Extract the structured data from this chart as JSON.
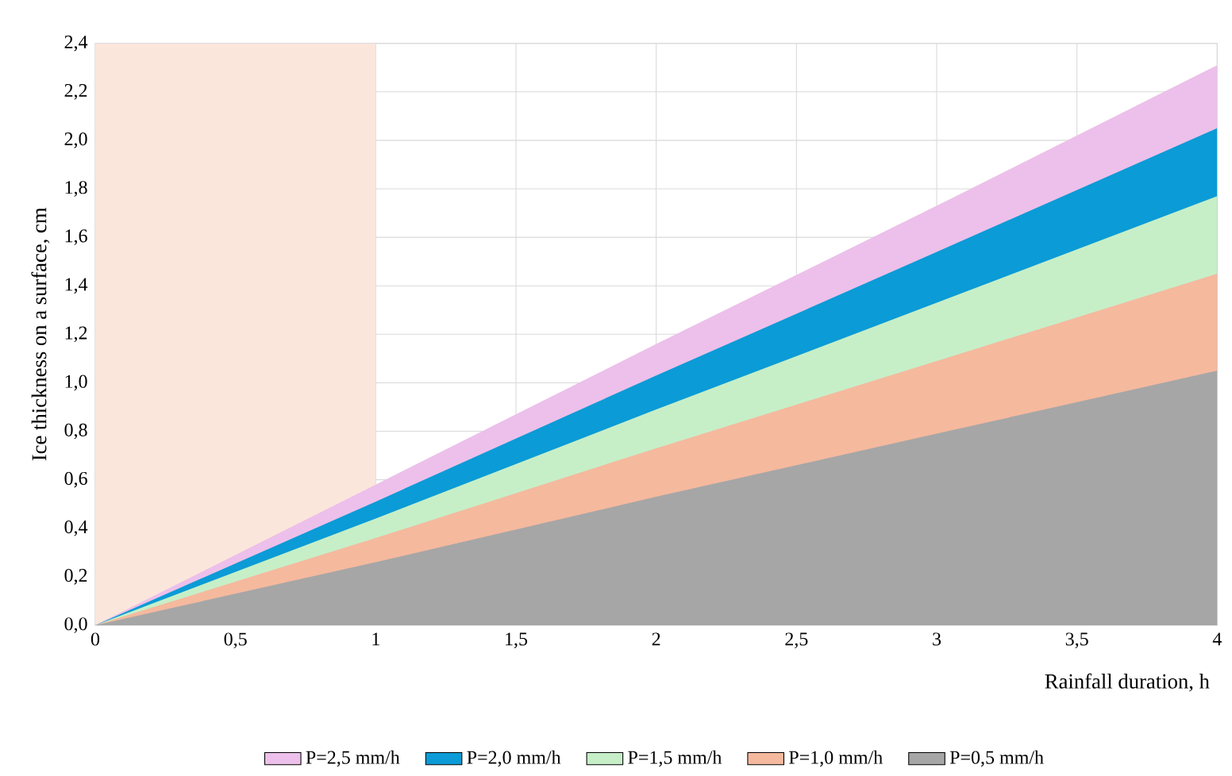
{
  "chart_data": {
    "type": "area",
    "xlabel": "Rainfall duration, h",
    "ylabel": "Ice thickness on a surface, cm",
    "x": [
      0,
      1,
      2,
      3,
      4
    ],
    "series": [
      {
        "name": "P=2,5 mm/h",
        "color": "#ecc0ea",
        "values": [
          0,
          0.58,
          1.16,
          1.73,
          2.31
        ]
      },
      {
        "name": "P=2,0 mm/h",
        "color": "#0b9bd6",
        "values": [
          0,
          0.51,
          1.03,
          1.54,
          2.05
        ]
      },
      {
        "name": "P=1,5 mm/h",
        "color": "#c6efc8",
        "values": [
          0,
          0.44,
          0.89,
          1.33,
          1.77
        ]
      },
      {
        "name": "P=1,0 mm/h",
        "color": "#f5b99e",
        "values": [
          0,
          0.36,
          0.73,
          1.09,
          1.45
        ]
      },
      {
        "name": "P=0,5 mm/h",
        "color": "#a6a6a6",
        "values": [
          0,
          0.26,
          0.53,
          0.79,
          1.05
        ]
      }
    ],
    "xlim": [
      0,
      4
    ],
    "ylim": [
      0,
      2.4
    ],
    "xticks": [
      0,
      {
        "value": 0.5,
        "label": "0,5"
      },
      1,
      {
        "value": 1.5,
        "label": "1,5"
      },
      2,
      {
        "value": 2.5,
        "label": "2,5"
      },
      3,
      {
        "value": 3.5,
        "label": "3,5"
      },
      4
    ],
    "yticks": [
      {
        "value": 0,
        "label": "0,0"
      },
      {
        "value": 0.2,
        "label": "0,2"
      },
      {
        "value": 0.4,
        "label": "0,4"
      },
      {
        "value": 0.6,
        "label": "0,6"
      },
      {
        "value": 0.8,
        "label": "0,8"
      },
      {
        "value": 1.0,
        "label": "1,0"
      },
      {
        "value": 1.2,
        "label": "1,2"
      },
      {
        "value": 1.4,
        "label": "1,4"
      },
      {
        "value": 1.6,
        "label": "1,6"
      },
      {
        "value": 1.8,
        "label": "1,8"
      },
      {
        "value": 2.0,
        "label": "2,0"
      },
      {
        "value": 2.2,
        "label": "2,2"
      },
      {
        "value": 2.4,
        "label": "2,4"
      }
    ],
    "bands": [
      {
        "axis": "x",
        "from": 0,
        "to": 1,
        "color": "#fbe6dc"
      }
    ],
    "grid": true,
    "legend": "bottom"
  }
}
